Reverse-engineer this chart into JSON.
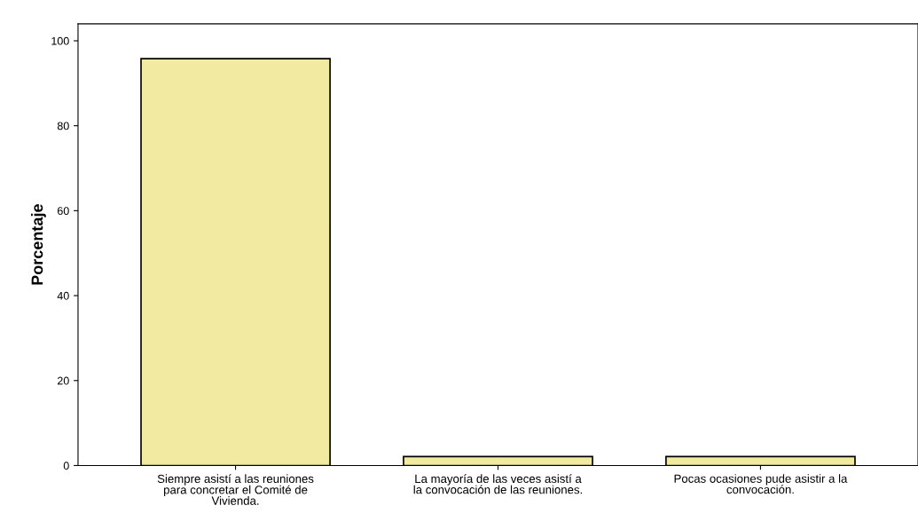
{
  "chart_data": {
    "type": "bar",
    "ylabel": "Porcentaje",
    "categories": [
      "Siempre asistí a las reuniones\npara concretar el Comité de\nVivienda.",
      "La mayoría de las veces asistí a\nla convocación de las reuniones.",
      "Pocas ocasiones pude asistir a la\nconvocación."
    ],
    "values": [
      95.8,
      2.1,
      2.1
    ],
    "color": "#f2eaa0",
    "ylim": [
      0,
      104
    ],
    "yticks": [
      0,
      20,
      40,
      60,
      80,
      100
    ],
    "grid": false,
    "legend": false
  }
}
